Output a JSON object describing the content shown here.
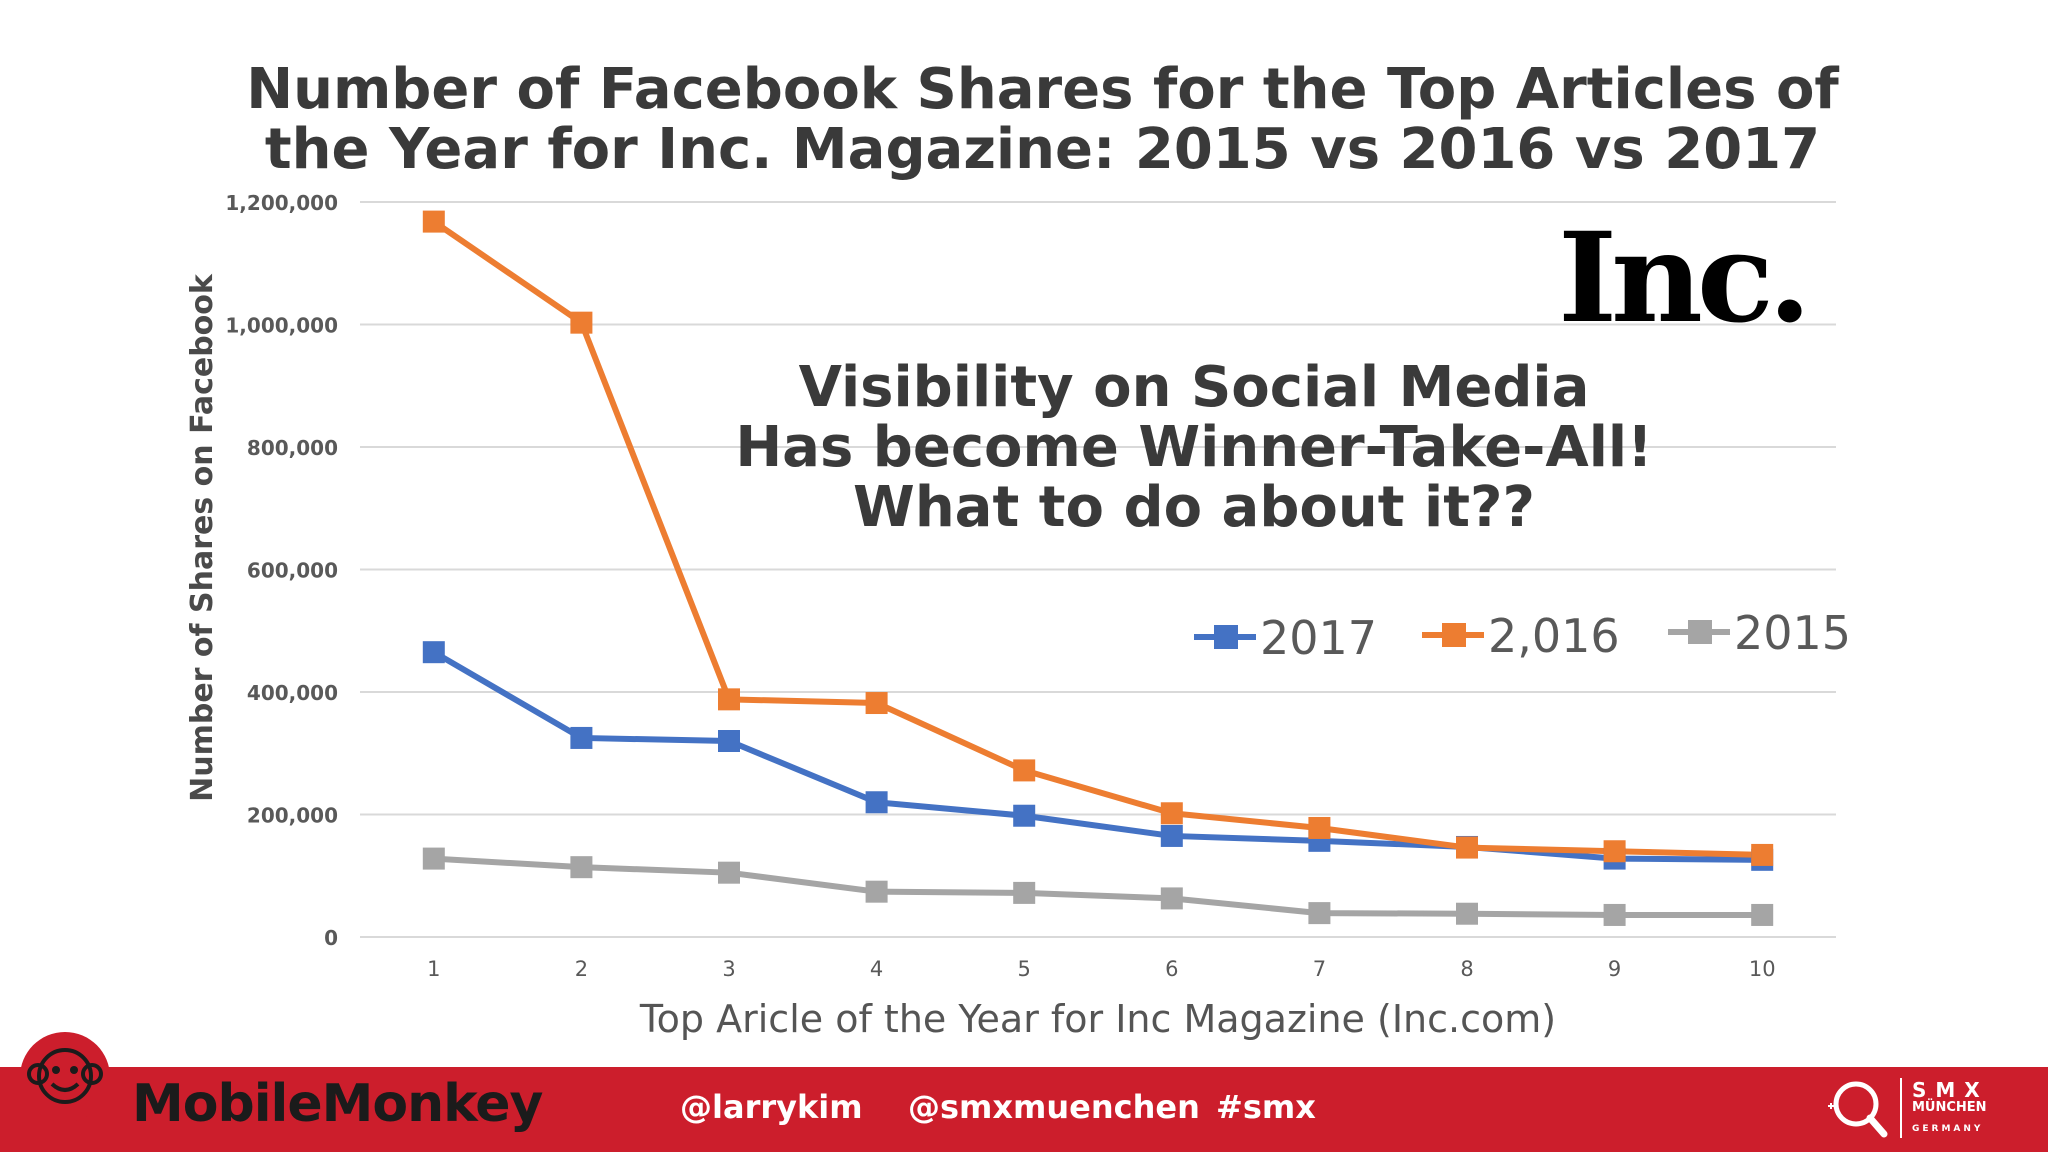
{
  "title": {
    "line1": "Number of Facebook Shares for the Top Articles of",
    "line2": "the Year for Inc. Magazine: 2015 vs 2016 vs 2017"
  },
  "annotation": {
    "line1": "Visibility on Social Media",
    "line2": "Has become Winner-Take-All!",
    "line3": "What to do about it??"
  },
  "inc_logo_text": "Inc.",
  "chart_data": {
    "type": "line",
    "ylabel": "Number of Shares on Facebook",
    "xlabel": "Top Aricle of the Year for Inc Magazine (Inc.com)",
    "categories": [
      "1",
      "2",
      "3",
      "4",
      "5",
      "6",
      "7",
      "8",
      "9",
      "10"
    ],
    "ylim": [
      0,
      1200000
    ],
    "yticks": [
      {
        "value": 0,
        "label": "0"
      },
      {
        "value": 200000,
        "label": "200,000"
      },
      {
        "value": 400000,
        "label": "400,000"
      },
      {
        "value": 600000,
        "label": "600,000"
      },
      {
        "value": 800000,
        "label": "800,000"
      },
      {
        "value": 1000000,
        "label": "1,000,000"
      },
      {
        "value": 1200000,
        "label": "1,200,000"
      }
    ],
    "grid": true,
    "legend_position": "right",
    "series": [
      {
        "name": "2017",
        "color": "#4472c4",
        "values": [
          465000,
          325000,
          320000,
          220000,
          198000,
          165000,
          157000,
          147000,
          128000,
          126000
        ]
      },
      {
        "name": "2,016",
        "color": "#ed7d31",
        "values": [
          1168000,
          1003000,
          388000,
          382000,
          272000,
          202000,
          178000,
          146000,
          140000,
          134000
        ]
      },
      {
        "name": "2015",
        "color": "#a5a5a5",
        "values": [
          128000,
          114000,
          105000,
          74000,
          72000,
          63000,
          39000,
          38000,
          36000,
          36000
        ]
      }
    ]
  },
  "footer": {
    "brand": "MobileMonkey",
    "handles": [
      "@larrykim",
      "@smxmuenchen",
      "#smx"
    ],
    "smx_title": "SMX",
    "smx_city": "MÜNCHEN",
    "smx_country": "GERMANY",
    "bar_color": "#cc1e2c"
  }
}
